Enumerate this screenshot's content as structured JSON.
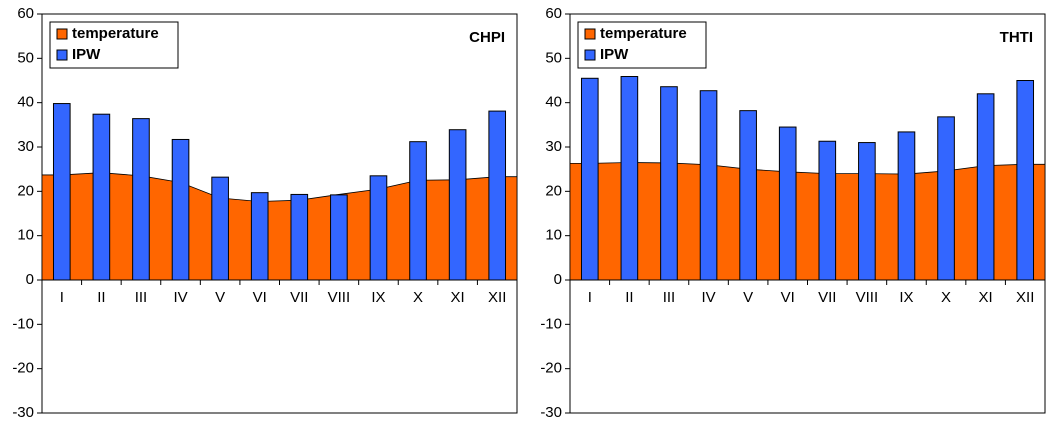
{
  "chart_data": [
    {
      "type": "combo",
      "title": "CHPI",
      "categories": [
        "I",
        "II",
        "III",
        "IV",
        "V",
        "VI",
        "VII",
        "VIII",
        "IX",
        "X",
        "XI",
        "XII"
      ],
      "series": [
        {
          "name": "temperature",
          "type": "area",
          "color": "#ff6600",
          "values": [
            23.7,
            24.2,
            23.5,
            22,
            18.5,
            17.7,
            18,
            19.3,
            20.5,
            22.5,
            22.6,
            23.3
          ]
        },
        {
          "name": "IPW",
          "type": "bar",
          "color": "#3366ff",
          "values": [
            39.8,
            37.4,
            36.4,
            31.7,
            23.2,
            19.7,
            19.3,
            19.2,
            23.5,
            31.2,
            33.9,
            38.1
          ]
        }
      ],
      "ylim": [
        -30,
        60
      ],
      "yticks": [
        -30,
        -20,
        -10,
        0,
        10,
        20,
        30,
        40,
        50,
        60
      ],
      "grid": false,
      "legend": "top-left"
    },
    {
      "type": "combo",
      "title": "THTI",
      "categories": [
        "I",
        "II",
        "III",
        "IV",
        "V",
        "VI",
        "VII",
        "VIII",
        "IX",
        "X",
        "XI",
        "XII"
      ],
      "series": [
        {
          "name": "temperature",
          "type": "area",
          "color": "#ff6600",
          "values": [
            26.3,
            26.5,
            26.4,
            26,
            25,
            24.4,
            24,
            24,
            23.9,
            24.6,
            25.8,
            26.1
          ]
        },
        {
          "name": "IPW",
          "type": "bar",
          "color": "#3366ff",
          "values": [
            45.5,
            45.9,
            43.6,
            42.7,
            38.2,
            34.5,
            31.3,
            31,
            33.4,
            36.8,
            42,
            45
          ]
        }
      ],
      "ylim": [
        -30,
        60
      ],
      "yticks": [
        -30,
        -20,
        -10,
        0,
        10,
        20,
        30,
        40,
        50,
        60
      ],
      "grid": false,
      "legend": "top-left"
    }
  ]
}
